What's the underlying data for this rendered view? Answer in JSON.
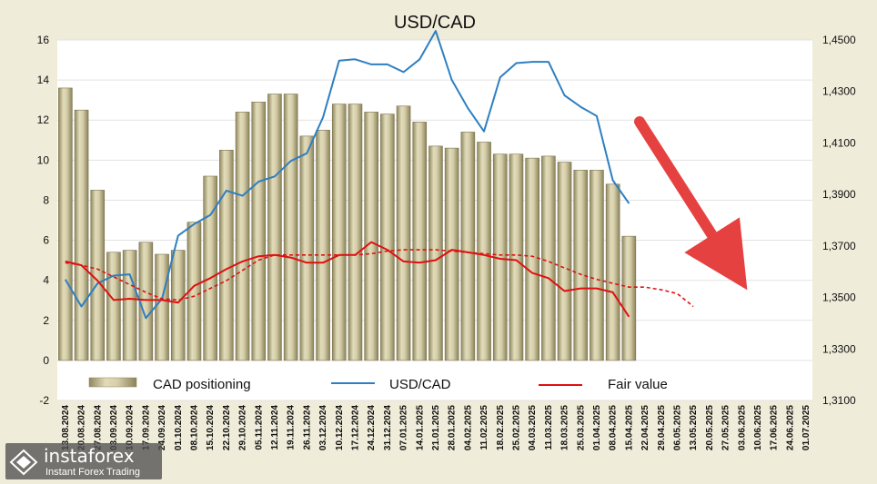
{
  "chart_data": {
    "type": "bar+line",
    "title": "USD/CAD",
    "left_axis": {
      "ylim": [
        -2,
        16
      ],
      "ticks": [
        "16",
        "14",
        "12",
        "10",
        "8",
        "6",
        "4",
        "2",
        "0",
        "-2"
      ]
    },
    "right_axis": {
      "ylim": [
        1.31,
        1.45
      ],
      "ticks": [
        "1,4500",
        "1,4300",
        "1,4100",
        "1,3900",
        "1,3700",
        "1,3500",
        "1,3300",
        "1,3100"
      ]
    },
    "x_labels": [
      "13.08.2024",
      "20.08.2024",
      "27.08.2024",
      "03.09.2024",
      "10.09.2024",
      "17.09.2024",
      "24.09.2024",
      "01.10.2024",
      "08.10.2024",
      "15.10.2024",
      "22.10.2024",
      "29.10.2024",
      "05.11.2024",
      "12.11.2024",
      "19.11.2024",
      "26.11.2024",
      "03.12.2024",
      "10.12.2024",
      "17.12.2024",
      "24.12.2024",
      "31.12.2024",
      "07.01.2025",
      "14.01.2025",
      "21.01.2025",
      "28.01.2025",
      "04.02.2025",
      "11.02.2025",
      "18.02.2025",
      "25.02.2025",
      "04.03.2025",
      "11.03.2025",
      "18.03.2025",
      "25.03.2025",
      "01.04.2025",
      "08.04.2025",
      "15.04.2025",
      "22.04.2025",
      "29.04.2025",
      "06.05.2025",
      "13.05.2025",
      "20.05.2025",
      "27.05.2025",
      "03.06.2025",
      "10.06.2025",
      "17.06.2025",
      "24.06.2025",
      "01.07.2025"
    ],
    "legend": [
      "CAD positioning",
      "USD/CAD",
      "Fair value"
    ],
    "grid": true,
    "legend_placement": "bottom",
    "series": [
      {
        "name": "CAD positioning",
        "kind": "bar",
        "axis": "left",
        "color": "#c8bf95",
        "values": [
          13.6,
          12.5,
          8.5,
          5.4,
          5.5,
          5.9,
          5.3,
          5.5,
          6.9,
          9.2,
          10.5,
          12.4,
          12.9,
          13.3,
          13.3,
          11.2,
          11.5,
          12.8,
          12.8,
          12.4,
          12.3,
          12.7,
          11.9,
          10.7,
          10.6,
          11.4,
          10.9,
          10.3,
          10.3,
          10.1,
          10.2,
          9.9,
          9.5,
          9.5,
          8.8,
          6.2,
          null,
          null,
          null,
          null,
          null,
          null,
          null,
          null,
          null,
          null,
          null
        ]
      },
      {
        "name": "USD/CAD",
        "kind": "line",
        "axis": "right",
        "color": "#2e7fc1",
        "values": [
          1.357,
          1.3465,
          1.3555,
          1.3585,
          1.359,
          1.342,
          1.3495,
          1.374,
          1.3785,
          1.382,
          1.3915,
          1.3895,
          1.395,
          1.397,
          1.403,
          1.406,
          1.42,
          1.442,
          1.4425,
          1.4405,
          1.4405,
          1.4375,
          1.4425,
          1.4535,
          1.4345,
          1.4235,
          1.4145,
          1.4355,
          1.441,
          1.4415,
          1.4415,
          1.4285,
          1.424,
          1.4205,
          1.3955,
          1.3865,
          null,
          null,
          null,
          null,
          null,
          null,
          null,
          null,
          null,
          null,
          null
        ]
      },
      {
        "name": "Fair value",
        "kind": "line",
        "axis": "right",
        "color": "#e01010",
        "values": [
          1.364,
          1.3625,
          1.3565,
          1.349,
          1.3495,
          1.349,
          1.349,
          1.348,
          1.3545,
          1.3575,
          1.361,
          1.364,
          1.366,
          1.3665,
          1.3655,
          1.3635,
          1.3635,
          1.3665,
          1.3665,
          1.3715,
          1.3685,
          1.364,
          1.3635,
          1.3645,
          1.3685,
          1.3675,
          1.3665,
          1.365,
          1.3645,
          1.3595,
          1.3575,
          1.3525,
          1.3535,
          1.3535,
          1.352,
          1.3425,
          null,
          null,
          null,
          null,
          null,
          null,
          null,
          null,
          null,
          null,
          null
        ]
      },
      {
        "name": "Fair value (smoothed)",
        "kind": "dashed-line",
        "axis": "right",
        "color": "#e01010",
        "values": [
          1.3635,
          1.3625,
          1.361,
          1.358,
          1.355,
          1.352,
          1.3495,
          1.349,
          1.3505,
          1.3535,
          1.3565,
          1.3605,
          1.3645,
          1.3665,
          1.3665,
          1.3665,
          1.3665,
          1.3665,
          1.3665,
          1.367,
          1.368,
          1.3685,
          1.3685,
          1.3685,
          1.368,
          1.3675,
          1.367,
          1.3665,
          1.3665,
          1.366,
          1.364,
          1.3615,
          1.359,
          1.357,
          1.3555,
          1.354,
          1.354,
          1.353,
          1.3515,
          1.3465,
          null,
          null,
          null,
          null,
          null,
          null,
          null
        ]
      }
    ],
    "annotation": {
      "type": "arrow",
      "color": "#e64141",
      "direction": "down-right"
    },
    "colors": {
      "background": "#efecd9",
      "plot_area": "#ffffff",
      "grid": "#e2e2e2"
    }
  },
  "watermark": {
    "brand": "instaforex",
    "tagline": "Instant Forex Trading"
  }
}
